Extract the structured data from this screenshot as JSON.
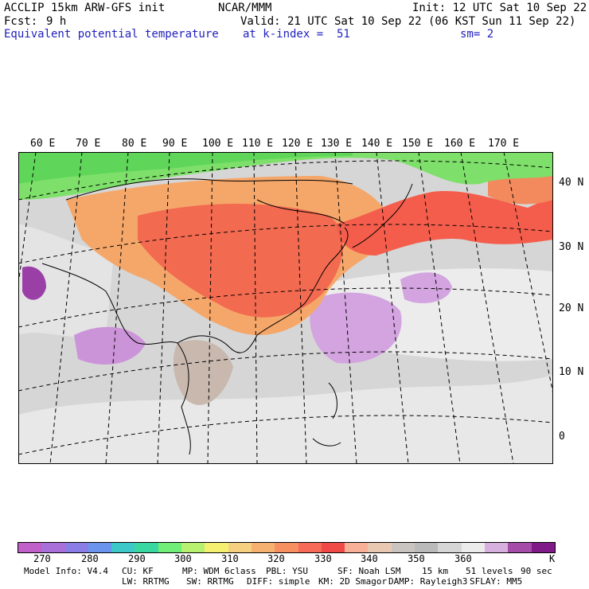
{
  "header": {
    "model": "ACCLIP 15km ARW-GFS init",
    "org": "NCAR/MMM",
    "init": "Init: 12 UTC Sat 10 Sep 22",
    "fcst_label": "Fcst:",
    "fcst_value": "9 h",
    "valid": "Valid: 21 UTC Sat 10 Sep 22 (06 KST Sun 11 Sep 22)",
    "field": "Equivalent potential temperature",
    "level": "at k-index =  51",
    "smooth": "sm= 2"
  },
  "map": {
    "lon_labels": [
      "60 E",
      "70 E",
      "80 E",
      "90 E",
      "100 E",
      "110 E",
      "120 E",
      "130 E",
      "140 E",
      "150 E",
      "160 E",
      "170 E"
    ],
    "lat_labels": [
      "40 N",
      "30 N",
      "20 N",
      "10 N",
      "0"
    ],
    "colors": {
      "cool_green": "#7ee06a",
      "warm_red": "#f26a50",
      "orange": "#f5a76a",
      "grey": "#c8c6c4",
      "light": "#ececec",
      "purple": "#cc9ad9"
    }
  },
  "colorbar": {
    "colors": [
      "#c060c8",
      "#a870d8",
      "#8a7ee6",
      "#6a94ee",
      "#3ec8c8",
      "#3ad8a0",
      "#70ee78",
      "#b8f070",
      "#f6f070",
      "#f6d080",
      "#f6b070",
      "#f69060",
      "#f86a58",
      "#f04a48",
      "#f8b098",
      "#e8c8b0",
      "#cac4c0",
      "#bababa",
      "#d6d6d6",
      "#ececec",
      "#d8b0e0",
      "#a44ca8",
      "#801a88"
    ],
    "ticks": [
      "270",
      "280",
      "290",
      "300",
      "310",
      "320",
      "330",
      "340",
      "350",
      "360"
    ],
    "unit": "K"
  },
  "footer": {
    "line1": [
      "Model Info: V4.4",
      "CU: KF",
      "MP: WDM 6class",
      "PBL: YSU",
      "SF: Noah LSM",
      "15 km",
      "51 levels",
      "90 sec"
    ],
    "line2": [
      "LW: RRTMG",
      "SW: RRTMG",
      "DIFF: simple",
      "KM: 2D Smagor",
      "DAMP: Rayleigh3",
      "SFLAY: MM5"
    ]
  }
}
